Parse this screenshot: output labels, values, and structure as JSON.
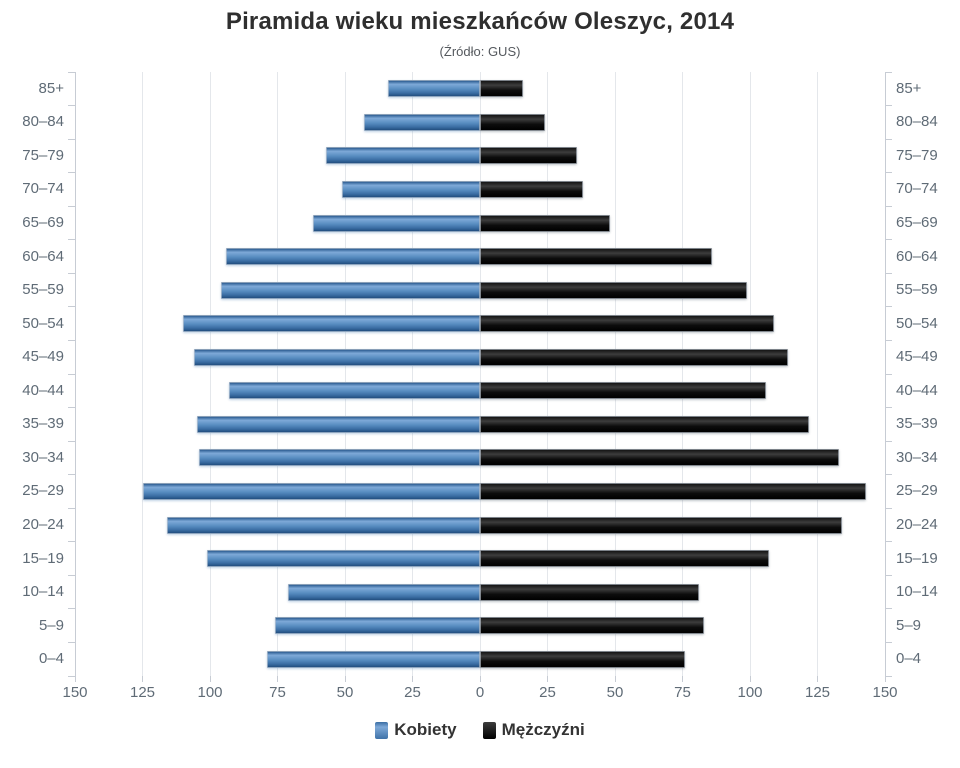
{
  "title": "Piramida wieku mieszkańców Oleszyc, 2014",
  "subtitle": "(Źródło: GUS)",
  "legend": {
    "items": [
      {
        "label": "Kobiety",
        "color": "#4f83bc"
      },
      {
        "label": "Mężczyźni",
        "color": "#121212"
      }
    ]
  },
  "chart_data": {
    "type": "bar",
    "variant": "population-pyramid",
    "title": "Piramida wieku mieszkańców Oleszyc, 2014",
    "subtitle": "(Źródło: GUS)",
    "categories": [
      "85+",
      "80–84",
      "75–79",
      "70–74",
      "65–69",
      "60–64",
      "55–59",
      "50–54",
      "45–49",
      "40–44",
      "35–39",
      "30–34",
      "25–29",
      "20–24",
      "15–19",
      "10–14",
      "5–9",
      "0–4"
    ],
    "series": [
      {
        "name": "Kobiety",
        "side": "left",
        "color": "#4f83bc",
        "values": [
          34,
          43,
          57,
          51,
          62,
          94,
          96,
          110,
          106,
          93,
          105,
          104,
          125,
          116,
          101,
          71,
          76,
          79
        ]
      },
      {
        "name": "Mężczyźni",
        "side": "right",
        "color": "#121212",
        "values": [
          16,
          24,
          36,
          38,
          48,
          86,
          99,
          109,
          114,
          106,
          122,
          133,
          143,
          134,
          107,
          81,
          83,
          76
        ]
      }
    ],
    "x_tick_labels": [
      "150",
      "125",
      "100",
      "75",
      "50",
      "25",
      "0",
      "25",
      "50",
      "75",
      "100",
      "125",
      "150"
    ],
    "xlim": 150,
    "tick_step": 25,
    "grid": true,
    "legend_position": "bottom"
  }
}
